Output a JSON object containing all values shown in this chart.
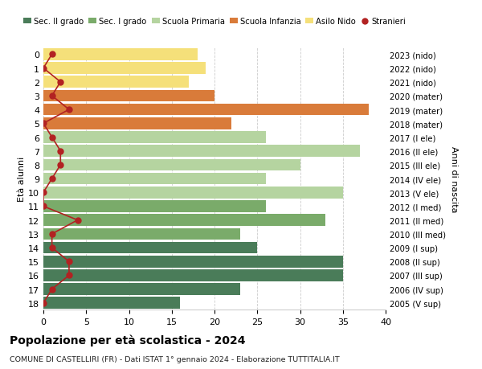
{
  "ages": [
    18,
    17,
    16,
    15,
    14,
    13,
    12,
    11,
    10,
    9,
    8,
    7,
    6,
    5,
    4,
    3,
    2,
    1,
    0
  ],
  "years": [
    "2005 (V sup)",
    "2006 (IV sup)",
    "2007 (III sup)",
    "2008 (II sup)",
    "2009 (I sup)",
    "2010 (III med)",
    "2011 (II med)",
    "2012 (I med)",
    "2013 (V ele)",
    "2014 (IV ele)",
    "2015 (III ele)",
    "2016 (II ele)",
    "2017 (I ele)",
    "2018 (mater)",
    "2019 (mater)",
    "2020 (mater)",
    "2021 (nido)",
    "2022 (nido)",
    "2023 (nido)"
  ],
  "bar_values": [
    16,
    23,
    35,
    35,
    25,
    23,
    33,
    26,
    35,
    26,
    30,
    37,
    26,
    22,
    38,
    20,
    17,
    19,
    18
  ],
  "bar_colors": [
    "#4a7c59",
    "#4a7c59",
    "#4a7c59",
    "#4a7c59",
    "#4a7c59",
    "#7aab6a",
    "#7aab6a",
    "#7aab6a",
    "#b5d4a0",
    "#b5d4a0",
    "#b5d4a0",
    "#b5d4a0",
    "#b5d4a0",
    "#d97b3a",
    "#d97b3a",
    "#d97b3a",
    "#f5e07a",
    "#f5e07a",
    "#f5e07a"
  ],
  "stranieri_values": [
    0,
    1,
    3,
    3,
    1,
    1,
    4,
    0,
    0,
    1,
    2,
    2,
    1,
    0,
    3,
    1,
    2,
    0,
    1
  ],
  "legend_labels": [
    "Sec. II grado",
    "Sec. I grado",
    "Scuola Primaria",
    "Scuola Infanzia",
    "Asilo Nido",
    "Stranieri"
  ],
  "legend_colors": [
    "#4a7c59",
    "#7aab6a",
    "#b5d4a0",
    "#d97b3a",
    "#f5e07a",
    "#b22222"
  ],
  "title": "Popolazione per età scolastica - 2024",
  "subtitle": "COMUNE DI CASTELLIRI (FR) - Dati ISTAT 1° gennaio 2024 - Elaborazione TUTTITALIA.IT",
  "ylabel_left": "Età alunni",
  "ylabel_right": "Anni di nascita",
  "xlim": [
    0,
    40
  ],
  "bg_color": "#ffffff",
  "grid_color": "#cccccc"
}
